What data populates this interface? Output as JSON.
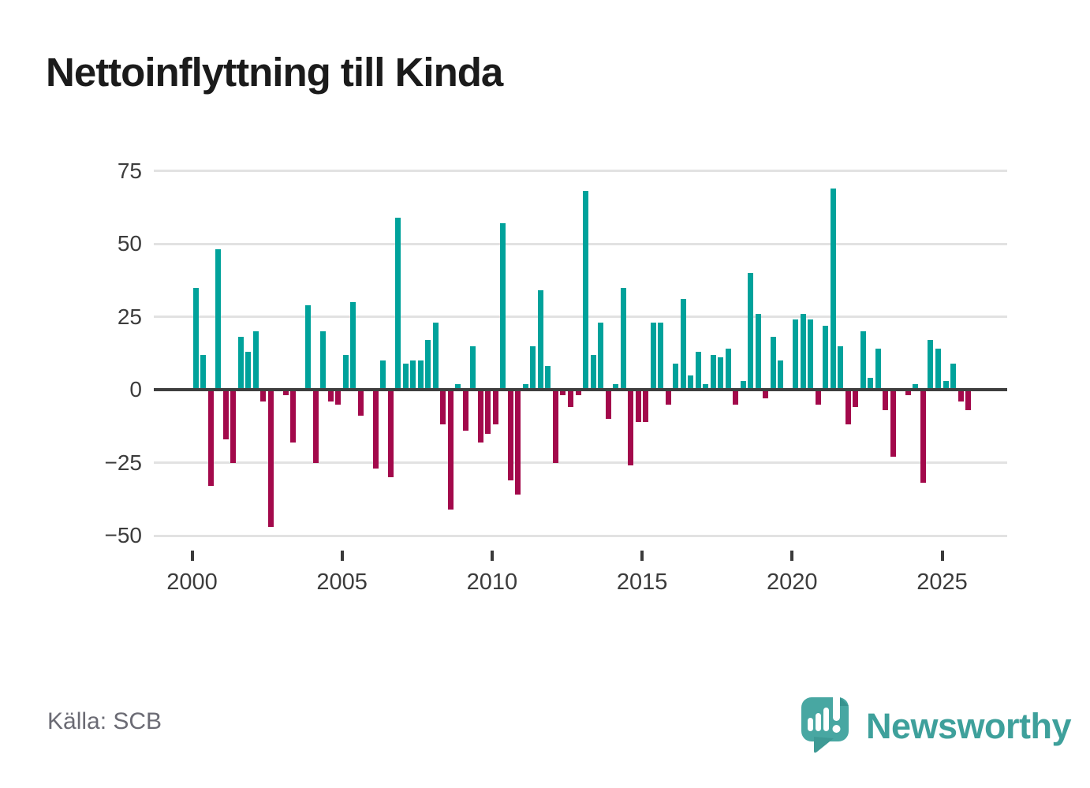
{
  "title": "Nettoinflyttning till Kinda",
  "source": "Källa: SCB",
  "branding": {
    "logo_text": "Newsworthy",
    "icon": "newsworthy-speech-bubble-chart-icon"
  },
  "colors": {
    "positive_bar": "#00A29B",
    "negative_bar": "#A3094B",
    "gridline": "#E2E2E2",
    "zero_line": "#3E3E3E",
    "axis_text": "#3C3C3C",
    "title_text": "#1B1B1B",
    "source_text": "#6B6B74",
    "logo_teal": "#3EA09B",
    "icon_teal": "#48A7A2",
    "icon_teal_dark": "#37938E"
  },
  "chart_data": {
    "type": "bar",
    "title": "Nettoinflyttning till Kinda",
    "frequency": "quarterly",
    "start_year": 2000,
    "end_year": 2025,
    "xlabel": "",
    "ylabel": "",
    "ylim": [
      -50,
      75
    ],
    "grid": true,
    "legend": false,
    "y_ticks": [
      75,
      50,
      25,
      0,
      -25,
      -50
    ],
    "y_tick_labels": [
      "75",
      "50",
      "25",
      "0",
      "−25",
      "−50"
    ],
    "x_tick_years": [
      2000,
      2005,
      2010,
      2015,
      2020,
      2025
    ],
    "x_tick_labels": [
      "2000",
      "2005",
      "2010",
      "2015",
      "2020",
      "2025"
    ],
    "values": [
      35,
      12,
      -33,
      48,
      -17,
      -25,
      18,
      13,
      20,
      -4,
      -47,
      0,
      -2,
      -18,
      0,
      29,
      -25,
      20,
      -4,
      -5,
      12,
      30,
      -9,
      0,
      -27,
      10,
      -30,
      59,
      9,
      10,
      10,
      17,
      23,
      -12,
      -41,
      2,
      -14,
      15,
      -18,
      -15,
      -12,
      57,
      -31,
      -36,
      2,
      15,
      34,
      8,
      -25,
      -2,
      -6,
      -2,
      68,
      12,
      23,
      -10,
      2,
      35,
      -26,
      -11,
      -11,
      23,
      23,
      -5,
      9,
      31,
      5,
      13,
      2,
      12,
      11,
      14,
      -5,
      3,
      40,
      26,
      -3,
      18,
      10,
      0,
      24,
      26,
      24,
      -5,
      22,
      69,
      15,
      -12,
      -6,
      20,
      4,
      14,
      -7,
      -23,
      0,
      -2,
      2,
      -32,
      17,
      14,
      3,
      9,
      -4,
      -7
    ]
  }
}
